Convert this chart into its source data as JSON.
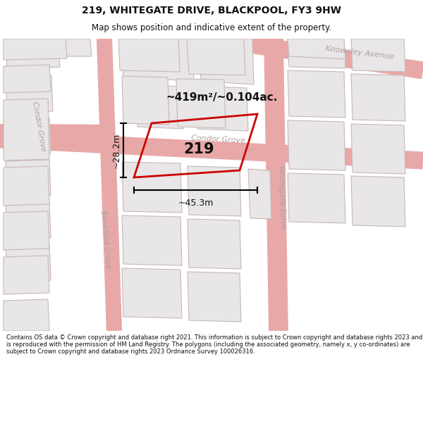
{
  "title_line1": "219, WHITEGATE DRIVE, BLACKPOOL, FY3 9HW",
  "title_line2": "Map shows position and indicative extent of the property.",
  "map_bg": "#f7f6f6",
  "road_edge_color": "#e8a8a8",
  "block_fill": "#e8e6e6",
  "block_edge": "#c8b8b8",
  "plot_color": "#cc0000",
  "plot_fill": "none",
  "text_black": "#111111",
  "text_grey": "#aaaaaa",
  "label_219": "219",
  "area_label": "~419m²/~0.104ac.",
  "dim_width_label": "~45.3m",
  "dim_height_label": "~28.2m",
  "footer_text": "Contains OS data © Crown copyright and database right 2021. This information is subject to Crown copyright and database rights 2023 and is reproduced with the permission of HM Land Registry. The polygons (including the associated geometry, namely x, y co-ordinates) are subject to Crown copyright and database rights 2023 Ordnance Survey 100026316.",
  "street_condor_grove": "Condor Grove",
  "street_whitegate": "Whitegate Drive",
  "street_knowsley": "Knowsley Avenue",
  "street_condor_left": "Condor Grove",
  "street_bankfield": "Bankfield Grove"
}
